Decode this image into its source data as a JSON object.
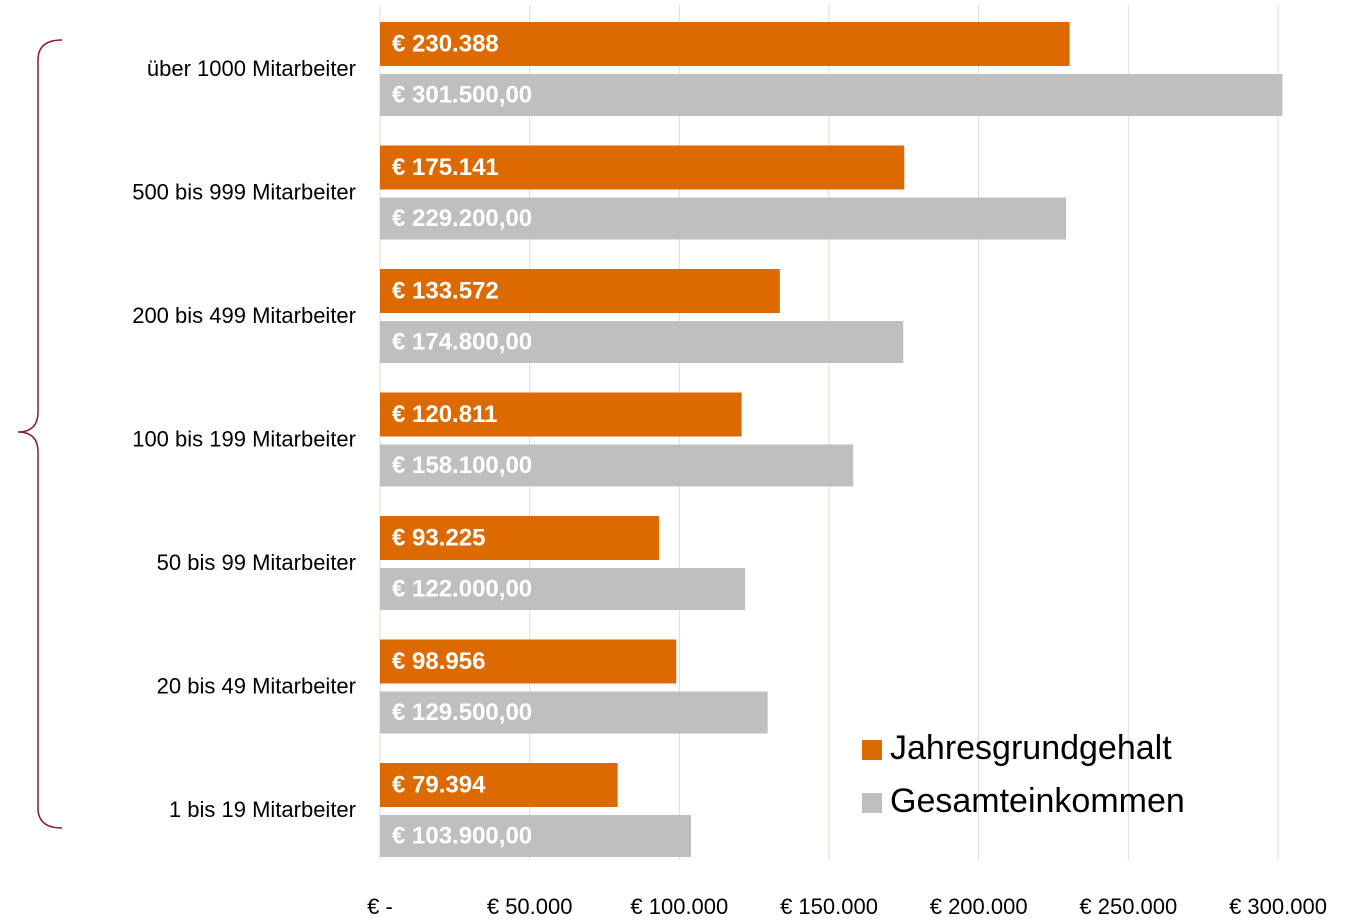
{
  "chart_data": {
    "type": "bar",
    "orientation": "horizontal",
    "categories": [
      "über 1000 Mitarbeiter",
      "500 bis 999 Mitarbeiter",
      "200 bis 499 Mitarbeiter",
      "100 bis 199 Mitarbeiter",
      "50 bis 99 Mitarbeiter",
      "20 bis 49 Mitarbeiter",
      "1 bis 19 Mitarbeiter"
    ],
    "series": [
      {
        "name": "Jahresgrundgehalt",
        "color": "#dd6a00",
        "values": [
          230388,
          175141,
          133572,
          120811,
          93225,
          98956,
          79394
        ],
        "value_labels": [
          "€ 230.388",
          "€ 175.141",
          "€ 133.572",
          "€ 120.811",
          "€ 93.225",
          "€ 98.956",
          "€ 79.394"
        ]
      },
      {
        "name": "Gesamteinkommen",
        "color": "#bfbfbf",
        "values": [
          301500,
          229200,
          174800,
          158100,
          122000,
          129500,
          103900
        ],
        "value_labels": [
          "€ 301.500,00",
          "€ 229.200,00",
          "€ 174.800,00",
          "€ 158.100,00",
          "€ 122.000,00",
          "€ 129.500,00",
          "€ 103.900,00"
        ]
      }
    ],
    "xlim": [
      0,
      300000
    ],
    "xticks": [
      {
        "value": 0,
        "label": "€ -"
      },
      {
        "value": 50000,
        "label": "€ 50.000"
      },
      {
        "value": 100000,
        "label": "€ 100.000"
      },
      {
        "value": 150000,
        "label": "€ 150.000"
      },
      {
        "value": 200000,
        "label": "€ 200.000"
      },
      {
        "value": 250000,
        "label": "€ 250.000"
      },
      {
        "value": 300000,
        "label": "€ 300.000"
      }
    ],
    "grid": true,
    "legend": "lower right"
  }
}
